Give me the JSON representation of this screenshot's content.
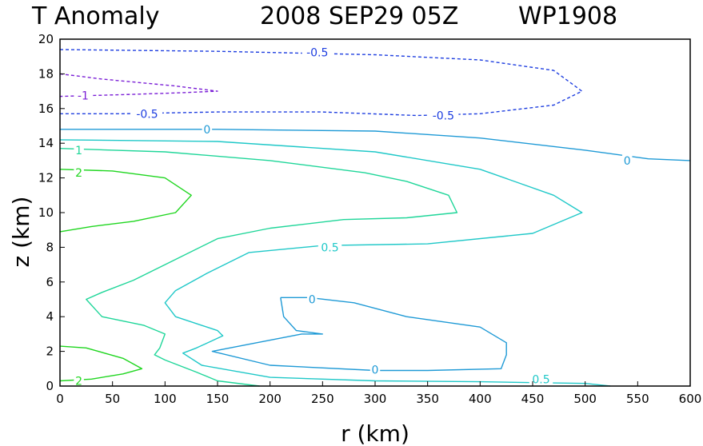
{
  "chart_data": {
    "type": "contour",
    "title": "T Anomaly",
    "date": "2008 SEP29 05Z",
    "storm": "WP1908",
    "xlabel": "r (km)",
    "ylabel": "z (km)",
    "xlim": [
      0,
      600
    ],
    "ylim": [
      0,
      20
    ],
    "xticks": [
      0,
      50,
      100,
      150,
      200,
      250,
      300,
      350,
      400,
      450,
      500,
      550,
      600
    ],
    "yticks": [
      0,
      2,
      4,
      6,
      8,
      10,
      12,
      14,
      16,
      18,
      20
    ],
    "contours": [
      {
        "name": "contour-minus-1-upper",
        "level": "-1",
        "color": "#7b1fd6",
        "dashed": true,
        "points": [
          [
            0,
            18
          ],
          [
            40,
            17.7
          ],
          [
            110,
            17.3
          ],
          [
            150,
            17
          ],
          [
            110,
            16.9
          ],
          [
            60,
            16.8
          ],
          [
            0,
            16.7
          ]
        ],
        "labels": [
          {
            "text": "-1",
            "x": 22,
            "z": 16.75
          }
        ]
      },
      {
        "name": "contour-minus-0.5-upper",
        "level": "-0.5",
        "color": "#1f3fe0",
        "dashed": true,
        "points": [
          [
            0,
            19.4
          ],
          [
            150,
            19.3
          ],
          [
            300,
            19.1
          ],
          [
            400,
            18.8
          ],
          [
            470,
            18.2
          ],
          [
            497,
            17
          ],
          [
            470,
            16.2
          ],
          [
            400,
            15.7
          ],
          [
            340,
            15.6
          ],
          [
            250,
            15.8
          ],
          [
            150,
            15.8
          ],
          [
            60,
            15.7
          ],
          [
            0,
            15.7
          ]
        ],
        "labels": [
          {
            "text": "-0.5",
            "x": 245,
            "z": 19.25
          },
          {
            "text": "-0.5",
            "x": 365,
            "z": 15.6
          },
          {
            "text": "-0.5",
            "x": 83,
            "z": 15.7
          }
        ]
      },
      {
        "name": "contour-0-upper",
        "level": "0",
        "color": "#1f9ad6",
        "dashed": false,
        "points": [
          [
            0,
            14.8
          ],
          [
            150,
            14.8
          ],
          [
            300,
            14.7
          ],
          [
            400,
            14.3
          ],
          [
            500,
            13.6
          ],
          [
            560,
            13.1
          ],
          [
            600,
            13
          ]
        ],
        "labels": [
          {
            "text": "0",
            "x": 140,
            "z": 14.8
          },
          {
            "text": "0",
            "x": 540,
            "z": 13.0
          }
        ]
      },
      {
        "name": "contour-0.5-upper",
        "level": "0.5",
        "color": "#1fc8c8",
        "dashed": false,
        "points": [
          [
            0,
            14.2
          ],
          [
            150,
            14.1
          ],
          [
            300,
            13.5
          ],
          [
            400,
            12.5
          ],
          [
            470,
            11
          ],
          [
            497,
            10
          ],
          [
            450,
            8.8
          ],
          [
            350,
            8.2
          ],
          [
            250,
            8.1
          ],
          [
            180,
            7.7
          ],
          [
            140,
            6.5
          ],
          [
            110,
            5.5
          ],
          [
            100,
            4.8
          ],
          [
            110,
            4
          ],
          [
            150,
            3.2
          ],
          [
            155,
            2.9
          ],
          [
            130,
            2.2
          ],
          [
            117,
            1.9
          ],
          [
            135,
            1.2
          ],
          [
            200,
            0.5
          ],
          [
            300,
            0.3
          ],
          [
            400,
            0.25
          ],
          [
            450,
            0.2
          ],
          [
            500,
            0.15
          ],
          [
            524,
            0
          ]
        ],
        "labels": [
          {
            "text": "0.5",
            "x": 257,
            "z": 8.0
          },
          {
            "text": "0.5",
            "x": 458,
            "z": 0.4
          }
        ]
      },
      {
        "name": "contour-1",
        "level": "1",
        "color": "#1fd699",
        "dashed": false,
        "points": [
          [
            0,
            13.7
          ],
          [
            100,
            13.5
          ],
          [
            200,
            13
          ],
          [
            290,
            12.3
          ],
          [
            330,
            11.8
          ],
          [
            370,
            11
          ],
          [
            378,
            10
          ],
          [
            330,
            9.7
          ],
          [
            270,
            9.6
          ],
          [
            200,
            9.1
          ],
          [
            150,
            8.5
          ],
          [
            100,
            7
          ],
          [
            70,
            6.1
          ],
          [
            40,
            5.4
          ],
          [
            25,
            5
          ],
          [
            40,
            4
          ],
          [
            80,
            3.5
          ],
          [
            100,
            3
          ],
          [
            95,
            2.2
          ],
          [
            90,
            1.8
          ],
          [
            100,
            1.5
          ],
          [
            130,
            0.8
          ],
          [
            150,
            0.3
          ],
          [
            190,
            0
          ]
        ],
        "labels": [
          {
            "text": "1",
            "x": 18,
            "z": 13.6
          }
        ]
      },
      {
        "name": "contour-2-upper",
        "level": "2",
        "color": "#1fd61f",
        "dashed": false,
        "points": [
          [
            0,
            12.5
          ],
          [
            50,
            12.4
          ],
          [
            100,
            12
          ],
          [
            125,
            11
          ],
          [
            110,
            10
          ],
          [
            70,
            9.5
          ],
          [
            30,
            9.2
          ],
          [
            0,
            8.9
          ]
        ],
        "labels": [
          {
            "text": "2",
            "x": 18,
            "z": 12.3
          }
        ]
      },
      {
        "name": "contour-2-lower",
        "level": "2",
        "color": "#1fd61f",
        "dashed": false,
        "points": [
          [
            0,
            2.3
          ],
          [
            25,
            2.2
          ],
          [
            60,
            1.6
          ],
          [
            78,
            1
          ],
          [
            60,
            0.7
          ],
          [
            30,
            0.4
          ],
          [
            0,
            0.3
          ]
        ],
        "labels": [
          {
            "text": "2",
            "x": 18,
            "z": 0.3
          }
        ]
      },
      {
        "name": "contour-0-lower",
        "level": "0",
        "color": "#1f9ad6",
        "dashed": false,
        "points": [
          [
            210,
            5.1
          ],
          [
            237,
            5.1
          ],
          [
            280,
            4.8
          ],
          [
            330,
            4
          ],
          [
            400,
            3.4
          ],
          [
            425,
            2.5
          ],
          [
            425,
            1.8
          ],
          [
            420,
            1
          ],
          [
            350,
            0.9
          ],
          [
            300,
            0.9
          ],
          [
            200,
            1.2
          ],
          [
            145,
            2
          ],
          [
            230,
            3
          ],
          [
            250,
            3
          ],
          [
            225,
            3.2
          ],
          [
            213,
            4
          ],
          [
            210,
            5.1
          ]
        ],
        "labels": [
          {
            "text": "0",
            "x": 240,
            "z": 5.0
          },
          {
            "text": "0",
            "x": 300,
            "z": 0.95
          }
        ]
      }
    ]
  }
}
